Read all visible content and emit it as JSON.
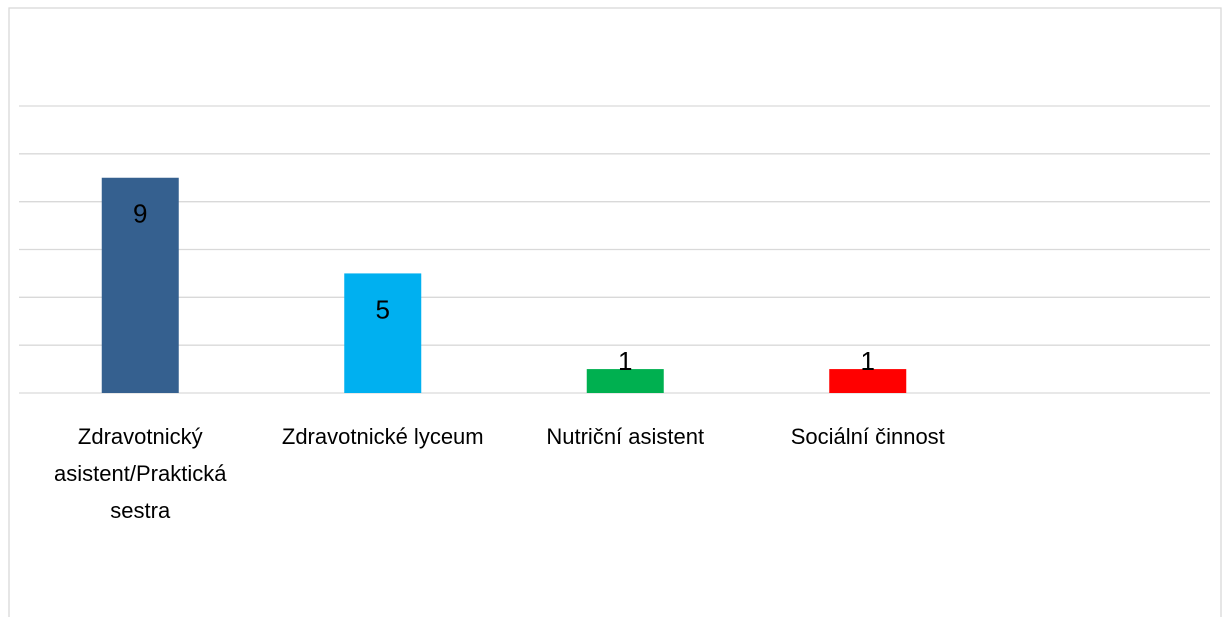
{
  "chart_data": {
    "type": "bar",
    "categories": [
      "Zdravotnický asistent/Praktická sestra",
      "Zdravotnické lyceum",
      "Nutriční asistent",
      "Sociální činnost"
    ],
    "values": [
      9,
      5,
      1,
      1
    ],
    "colors": [
      "#35608f",
      "#00b0f0",
      "#00b050",
      "#ff0000"
    ],
    "ylim": [
      0,
      12
    ],
    "yticks": [
      0,
      2,
      4,
      6,
      8,
      10,
      12
    ],
    "grid": true
  }
}
